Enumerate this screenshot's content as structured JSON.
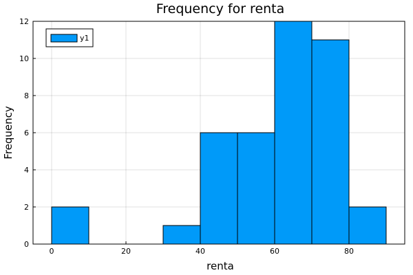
{
  "chart_data": {
    "type": "bar",
    "title": "Frequency for renta",
    "xlabel": "renta",
    "ylabel": "Frequency",
    "xlim": [
      -5,
      95
    ],
    "ylim": [
      0,
      12
    ],
    "xticks": [
      0,
      20,
      40,
      60,
      80
    ],
    "yticks": [
      0,
      2,
      4,
      6,
      8,
      10,
      12
    ],
    "grid": true,
    "legend": {
      "position": "top-left"
    },
    "bar_color": "#009af9",
    "series": [
      {
        "name": "y1",
        "bins": [
          {
            "x0": 0,
            "x1": 10,
            "count": 2
          },
          {
            "x0": 10,
            "x1": 20,
            "count": 0
          },
          {
            "x0": 20,
            "x1": 30,
            "count": 0
          },
          {
            "x0": 30,
            "x1": 40,
            "count": 1
          },
          {
            "x0": 40,
            "x1": 50,
            "count": 6
          },
          {
            "x0": 50,
            "x1": 60,
            "count": 6
          },
          {
            "x0": 60,
            "x1": 70,
            "count": 12
          },
          {
            "x0": 70,
            "x1": 80,
            "count": 11
          },
          {
            "x0": 80,
            "x1": 90,
            "count": 2
          }
        ]
      }
    ]
  }
}
